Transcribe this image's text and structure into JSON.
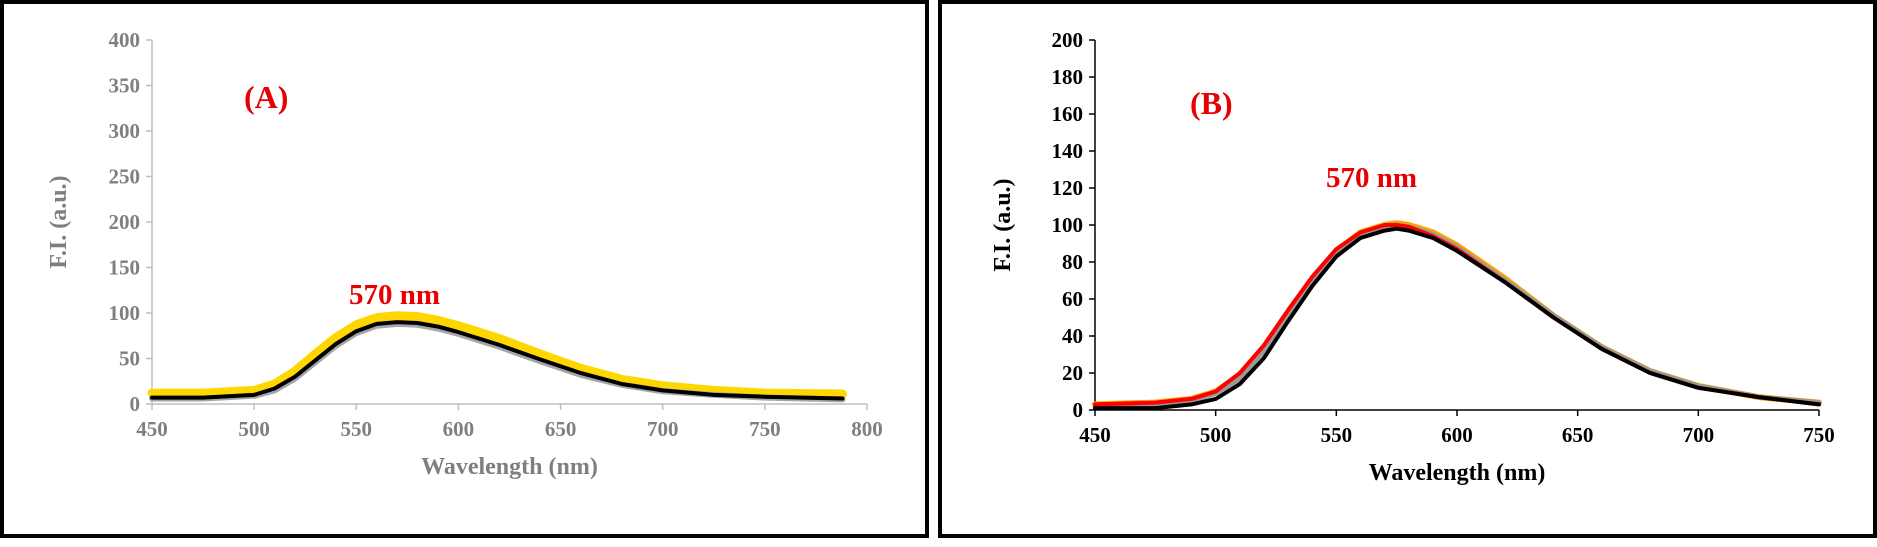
{
  "chart_data": [
    {
      "type": "line",
      "panel_label": "(A)",
      "annotation": "570 nm",
      "xlabel": "Wavelength (nm)",
      "ylabel": "F.I. (a.u.)",
      "xlim": [
        450,
        800
      ],
      "ylim": [
        0,
        400
      ],
      "xticks": [
        "450",
        "500",
        "550",
        "600",
        "650",
        "700",
        "750",
        "800"
      ],
      "yticks": [
        "0",
        "50",
        "100",
        "150",
        "200",
        "250",
        "300",
        "350",
        "400"
      ],
      "tick_color": "#7f7f7f",
      "grid": false,
      "x": [
        450,
        475,
        500,
        510,
        520,
        530,
        540,
        550,
        560,
        570,
        580,
        590,
        600,
        620,
        640,
        660,
        680,
        700,
        725,
        750,
        788
      ],
      "series": [
        {
          "color": "#ffd700",
          "values": [
            12,
            12,
            15,
            22,
            36,
            55,
            73,
            87,
            95,
            97,
            96,
            92,
            86,
            72,
            55,
            39,
            27,
            20,
            15,
            12,
            11
          ]
        },
        {
          "color": "#a6a6a6",
          "values": [
            6,
            6,
            9,
            15,
            28,
            46,
            64,
            78,
            86,
            88,
            87,
            83,
            77,
            63,
            47,
            32,
            21,
            14,
            10,
            7,
            5
          ]
        },
        {
          "color": "#000000",
          "values": [
            7,
            7,
            10,
            17,
            30,
            48,
            66,
            80,
            88,
            90,
            89,
            85,
            79,
            65,
            49,
            34,
            22,
            15,
            10,
            8,
            6
          ]
        }
      ]
    },
    {
      "type": "line",
      "panel_label": "(B)",
      "annotation": "570 nm",
      "xlabel": "Wavelength (nm)",
      "ylabel": "F.I. (a.u.)",
      "xlim": [
        450,
        750
      ],
      "ylim": [
        0,
        200
      ],
      "xticks": [
        "450",
        "500",
        "550",
        "600",
        "650",
        "700",
        "750"
      ],
      "yticks": [
        "0",
        "20",
        "40",
        "60",
        "80",
        "100",
        "120",
        "140",
        "160",
        "180",
        "200"
      ],
      "tick_color": "#000000",
      "grid": false,
      "x": [
        450,
        475,
        490,
        500,
        510,
        520,
        530,
        540,
        550,
        560,
        570,
        575,
        580,
        590,
        600,
        620,
        640,
        660,
        680,
        700,
        725,
        750
      ],
      "series": [
        {
          "color": "#ffa500",
          "values": [
            3,
            4,
            6,
            10,
            19,
            34,
            53,
            71,
            86,
            96,
            100,
            101,
            100,
            96,
            89,
            71,
            51,
            34,
            21,
            13,
            7,
            4
          ]
        },
        {
          "color": "#999999",
          "values": [
            2,
            3,
            5,
            9,
            17,
            32,
            51,
            69,
            85,
            95,
            99,
            100,
            99,
            95,
            88,
            70,
            51,
            34,
            21,
            13,
            7,
            4
          ]
        },
        {
          "color": "#ff0000",
          "values": [
            3,
            4,
            6,
            10,
            20,
            35,
            54,
            72,
            87,
            96,
            100,
            100,
            99,
            94,
            87,
            69,
            50,
            33,
            20,
            12,
            7,
            3
          ]
        },
        {
          "color": "#000000",
          "values": [
            1,
            1,
            3,
            6,
            14,
            28,
            48,
            67,
            83,
            93,
            97,
            98,
            97,
            93,
            86,
            69,
            50,
            33,
            20,
            12,
            7,
            3
          ]
        }
      ]
    }
  ]
}
